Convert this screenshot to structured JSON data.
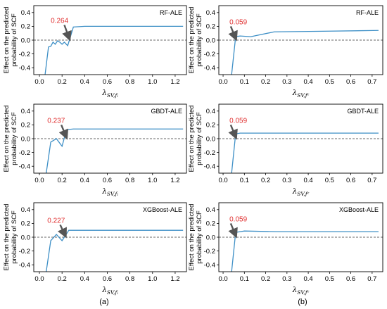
{
  "colors": {
    "line": "#3d8fc6",
    "annotation": "#e03030",
    "arrow": "#555555",
    "axis": "#000000",
    "zero_line": "#333333"
  },
  "captions": [
    "(a)",
    "(b)"
  ],
  "y_label_lines": [
    "Effect on the predicted",
    "probability of SCF"
  ],
  "chart_data": [
    {
      "type": "line",
      "title": "RF-ALE",
      "xlabel": {
        "base": "λ",
        "sub": "SV,fᵢ"
      },
      "xlim": [
        -0.05,
        1.3
      ],
      "ylim": [
        -0.5,
        0.5
      ],
      "xticks": [
        0.0,
        0.2,
        0.4,
        0.6,
        0.8,
        1.0,
        1.2
      ],
      "xtick_labels": [
        "0.0",
        "0.2",
        "0.4",
        "0.6",
        "0.8",
        "1.0",
        "1.2"
      ],
      "yticks": [
        -0.4,
        -0.2,
        0.0,
        0.2,
        0.4
      ],
      "ytick_labels": [
        "-0.4",
        "-0.2",
        "0.0",
        "0.2",
        "0.4"
      ],
      "reference_line_y": 0,
      "annotation": {
        "label": "0.264",
        "text_x": 0.1,
        "text_y": 0.25,
        "x": 0.264,
        "y": 0.0
      },
      "series": [
        {
          "x": [
            0.05,
            0.08,
            0.1,
            0.12,
            0.14,
            0.16,
            0.18,
            0.2,
            0.22,
            0.25,
            0.3,
            0.4,
            0.6,
            1.27
          ],
          "y": [
            -0.5,
            -0.1,
            -0.09,
            -0.03,
            -0.06,
            -0.01,
            -0.03,
            -0.06,
            -0.03,
            -0.08,
            0.19,
            0.2,
            0.2,
            0.2
          ]
        }
      ]
    },
    {
      "type": "line",
      "title": "RF-ALE",
      "xlabel": {
        "base": "λ",
        "sub": "SV,fᶜ"
      },
      "xlim": [
        -0.02,
        0.75
      ],
      "ylim": [
        -0.5,
        0.5
      ],
      "xticks": [
        0.0,
        0.1,
        0.2,
        0.3,
        0.4,
        0.5,
        0.6,
        0.7
      ],
      "xtick_labels": [
        "0.0",
        "0.1",
        "0.2",
        "0.3",
        "0.4",
        "0.5",
        "0.6",
        "0.7"
      ],
      "yticks": [
        -0.4,
        -0.2,
        0.0,
        0.2,
        0.4
      ],
      "ytick_labels": [
        "-0.4",
        "-0.2",
        "0.0",
        "0.2",
        "0.4"
      ],
      "reference_line_y": 0,
      "annotation": {
        "label": "0.059",
        "text_x": 0.03,
        "text_y": 0.23,
        "x": 0.059,
        "y": 0.0
      },
      "series": [
        {
          "x": [
            0.04,
            0.059,
            0.08,
            0.13,
            0.24,
            0.5,
            0.73
          ],
          "y": [
            -0.5,
            0.05,
            0.06,
            0.05,
            0.12,
            0.13,
            0.14
          ]
        }
      ]
    },
    {
      "type": "line",
      "title": "GBDT-ALE",
      "xlabel": {
        "base": "λ",
        "sub": "SV,fᵢ"
      },
      "xlim": [
        -0.05,
        1.3
      ],
      "ylim": [
        -0.5,
        0.5
      ],
      "xticks": [
        0.0,
        0.2,
        0.4,
        0.6,
        0.8,
        1.0,
        1.2
      ],
      "xtick_labels": [
        "0.0",
        "0.2",
        "0.4",
        "0.6",
        "0.8",
        "1.0",
        "1.2"
      ],
      "yticks": [
        -0.4,
        -0.2,
        0.0,
        0.2,
        0.4
      ],
      "ytick_labels": [
        "-0.4",
        "-0.2",
        "0.0",
        "0.2",
        "0.4"
      ],
      "reference_line_y": 0,
      "annotation": {
        "label": "0.237",
        "text_x": 0.07,
        "text_y": 0.23,
        "x": 0.237,
        "y": 0.0
      },
      "series": [
        {
          "x": [
            0.06,
            0.1,
            0.15,
            0.2,
            0.24,
            0.3,
            0.4,
            0.6,
            1.27
          ],
          "y": [
            -0.5,
            -0.05,
            0.0,
            -0.11,
            0.13,
            0.14,
            0.14,
            0.14,
            0.14
          ]
        }
      ]
    },
    {
      "type": "line",
      "title": "GBDT-ALE",
      "xlabel": {
        "base": "λ",
        "sub": "SV,fᶜ"
      },
      "xlim": [
        -0.02,
        0.75
      ],
      "ylim": [
        -0.5,
        0.5
      ],
      "xticks": [
        0.0,
        0.1,
        0.2,
        0.3,
        0.4,
        0.5,
        0.6,
        0.7
      ],
      "xtick_labels": [
        "0.0",
        "0.1",
        "0.2",
        "0.3",
        "0.4",
        "0.5",
        "0.6",
        "0.7"
      ],
      "yticks": [
        -0.4,
        -0.2,
        0.0,
        0.2,
        0.4
      ],
      "ytick_labels": [
        "-0.4",
        "-0.2",
        "0.0",
        "0.2",
        "0.4"
      ],
      "reference_line_y": 0,
      "annotation": {
        "label": "0.059",
        "text_x": 0.03,
        "text_y": 0.23,
        "x": 0.059,
        "y": 0.0
      },
      "series": [
        {
          "x": [
            0.04,
            0.059,
            0.08,
            0.2,
            0.5,
            0.73
          ],
          "y": [
            -0.5,
            0.07,
            0.08,
            0.08,
            0.08,
            0.08
          ]
        }
      ]
    },
    {
      "type": "line",
      "title": "XGBoost-ALE",
      "xlabel": {
        "base": "λ",
        "sub": "SV,fᵢ"
      },
      "xlim": [
        -0.05,
        1.3
      ],
      "ylim": [
        -0.5,
        0.5
      ],
      "xticks": [
        0.0,
        0.2,
        0.4,
        0.6,
        0.8,
        1.0,
        1.2
      ],
      "xtick_labels": [
        "0.0",
        "0.2",
        "0.4",
        "0.6",
        "0.8",
        "1.0",
        "1.2"
      ],
      "yticks": [
        -0.4,
        -0.2,
        0.0,
        0.2,
        0.4
      ],
      "ytick_labels": [
        "-0.4",
        "-0.2",
        "0.0",
        "0.2",
        "0.4"
      ],
      "reference_line_y": 0,
      "annotation": {
        "label": "0.227",
        "text_x": 0.07,
        "text_y": 0.21,
        "x": 0.227,
        "y": 0.0
      },
      "series": [
        {
          "x": [
            0.06,
            0.1,
            0.15,
            0.2,
            0.26,
            0.4,
            0.6,
            1.27
          ],
          "y": [
            -0.5,
            -0.05,
            0.04,
            -0.05,
            0.1,
            0.1,
            0.1,
            0.1
          ]
        }
      ]
    },
    {
      "type": "line",
      "title": "XGBoost-ALE",
      "xlabel": {
        "base": "λ",
        "sub": "SV,fᶜ"
      },
      "xlim": [
        -0.02,
        0.75
      ],
      "ylim": [
        -0.5,
        0.5
      ],
      "xticks": [
        0.0,
        0.1,
        0.2,
        0.3,
        0.4,
        0.5,
        0.6,
        0.7
      ],
      "xtick_labels": [
        "0.0",
        "0.1",
        "0.2",
        "0.3",
        "0.4",
        "0.5",
        "0.6",
        "0.7"
      ],
      "yticks": [
        -0.4,
        -0.2,
        0.0,
        0.2,
        0.4
      ],
      "ytick_labels": [
        "-0.4",
        "-0.2",
        "0.0",
        "0.2",
        "0.4"
      ],
      "reference_line_y": 0,
      "annotation": {
        "label": "0.059",
        "text_x": 0.03,
        "text_y": 0.23,
        "x": 0.059,
        "y": 0.0
      },
      "series": [
        {
          "x": [
            0.04,
            0.059,
            0.1,
            0.25,
            0.5,
            0.73
          ],
          "y": [
            -0.5,
            0.07,
            0.09,
            0.08,
            0.08,
            0.08
          ]
        }
      ]
    }
  ]
}
